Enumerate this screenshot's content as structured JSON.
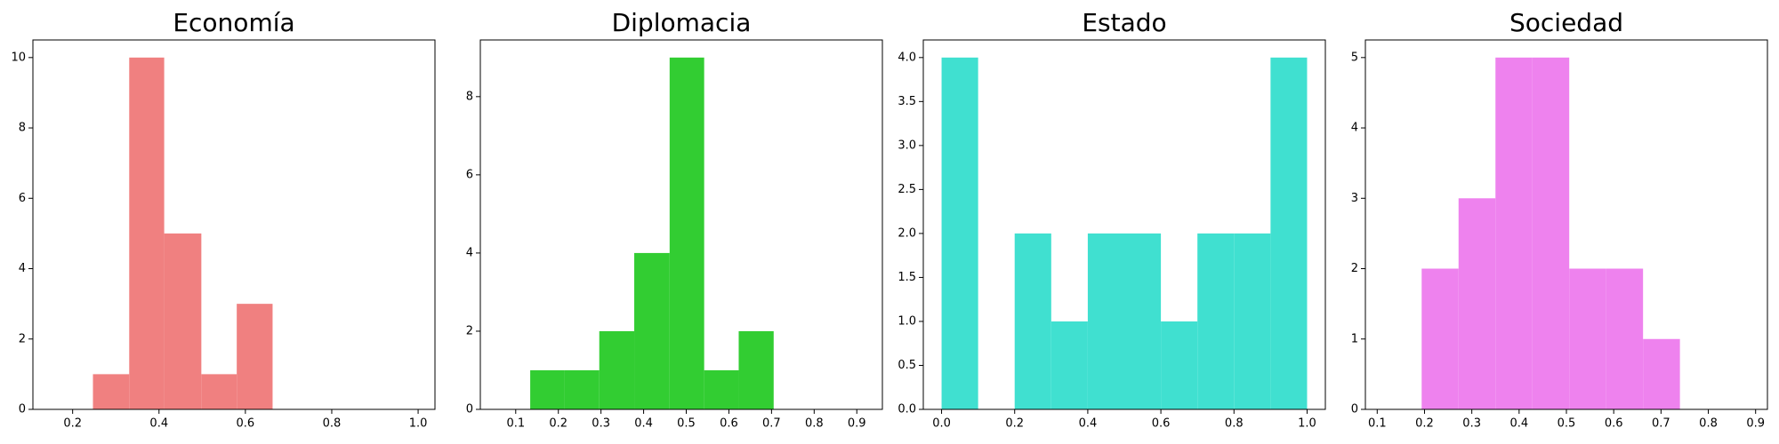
{
  "chart_data": [
    {
      "type": "histogram",
      "title": "Economía",
      "color": "#f08080",
      "bins": [
        0.247,
        0.331,
        0.412,
        0.498,
        0.58,
        0.663
      ],
      "counts": [
        1,
        10,
        5,
        1,
        3
      ],
      "xlim": [
        0.108,
        1.039
      ],
      "xticks": [
        0.2,
        0.4,
        0.6,
        0.8,
        {
          "value": 1.0,
          "label": "1.0"
        }
      ],
      "ylim": [
        0,
        10.5
      ],
      "yticks": [
        0,
        2,
        4,
        6,
        8,
        10
      ]
    },
    {
      "type": "histogram",
      "title": "Diplomacia",
      "color": "#32cd32",
      "bins": [
        0.134,
        0.215,
        0.296,
        0.378,
        0.461,
        0.542,
        0.623,
        0.705
      ],
      "counts": [
        1,
        1,
        2,
        4,
        9,
        1,
        2
      ],
      "xlim": [
        0.017,
        0.96
      ],
      "xticks": [
        0.1,
        0.2,
        0.3,
        0.4,
        0.5,
        0.6,
        0.7,
        0.8,
        0.9
      ],
      "ylim": [
        0,
        9.45
      ],
      "yticks": [
        0,
        2,
        4,
        6,
        8
      ]
    },
    {
      "type": "histogram",
      "title": "Estado",
      "color": "#40e0d0",
      "bins": [
        0,
        0.1,
        0.2,
        0.3,
        0.4,
        0.5,
        0.6,
        0.7,
        0.8,
        0.9,
        1
      ],
      "counts": [
        4,
        0,
        2,
        1,
        2,
        2,
        1,
        2,
        2,
        4
      ],
      "xlim": [
        -0.05,
        1.05
      ],
      "xticks": [
        {
          "value": 0,
          "label": "0.0"
        },
        0.2,
        0.4,
        0.6,
        0.8,
        {
          "value": 1,
          "label": "1.0"
        }
      ],
      "ylim": [
        0,
        4.2
      ],
      "yticks": [
        {
          "value": 0,
          "label": "0.0"
        },
        0.5,
        {
          "value": 1,
          "label": "1.0"
        },
        1.5,
        {
          "value": 2,
          "label": "2.0"
        },
        2.5,
        {
          "value": 3,
          "label": "3.0"
        },
        3.5,
        {
          "value": 4,
          "label": "4.0"
        }
      ]
    },
    {
      "type": "histogram",
      "title": "Sociedad",
      "color": "#ee82ee",
      "bins": [
        0.194,
        0.272,
        0.35,
        0.428,
        0.506,
        0.584,
        0.662,
        0.74
      ],
      "counts": [
        2,
        3,
        5,
        5,
        2,
        2,
        1
      ],
      "xlim": [
        0.075,
        0.925
      ],
      "xticks": [
        0.1,
        0.2,
        0.3,
        0.4,
        0.5,
        0.6,
        0.7,
        0.8,
        0.9
      ],
      "ylim": [
        0,
        5.25
      ],
      "yticks": [
        0,
        1,
        2,
        3,
        4,
        5
      ]
    }
  ]
}
